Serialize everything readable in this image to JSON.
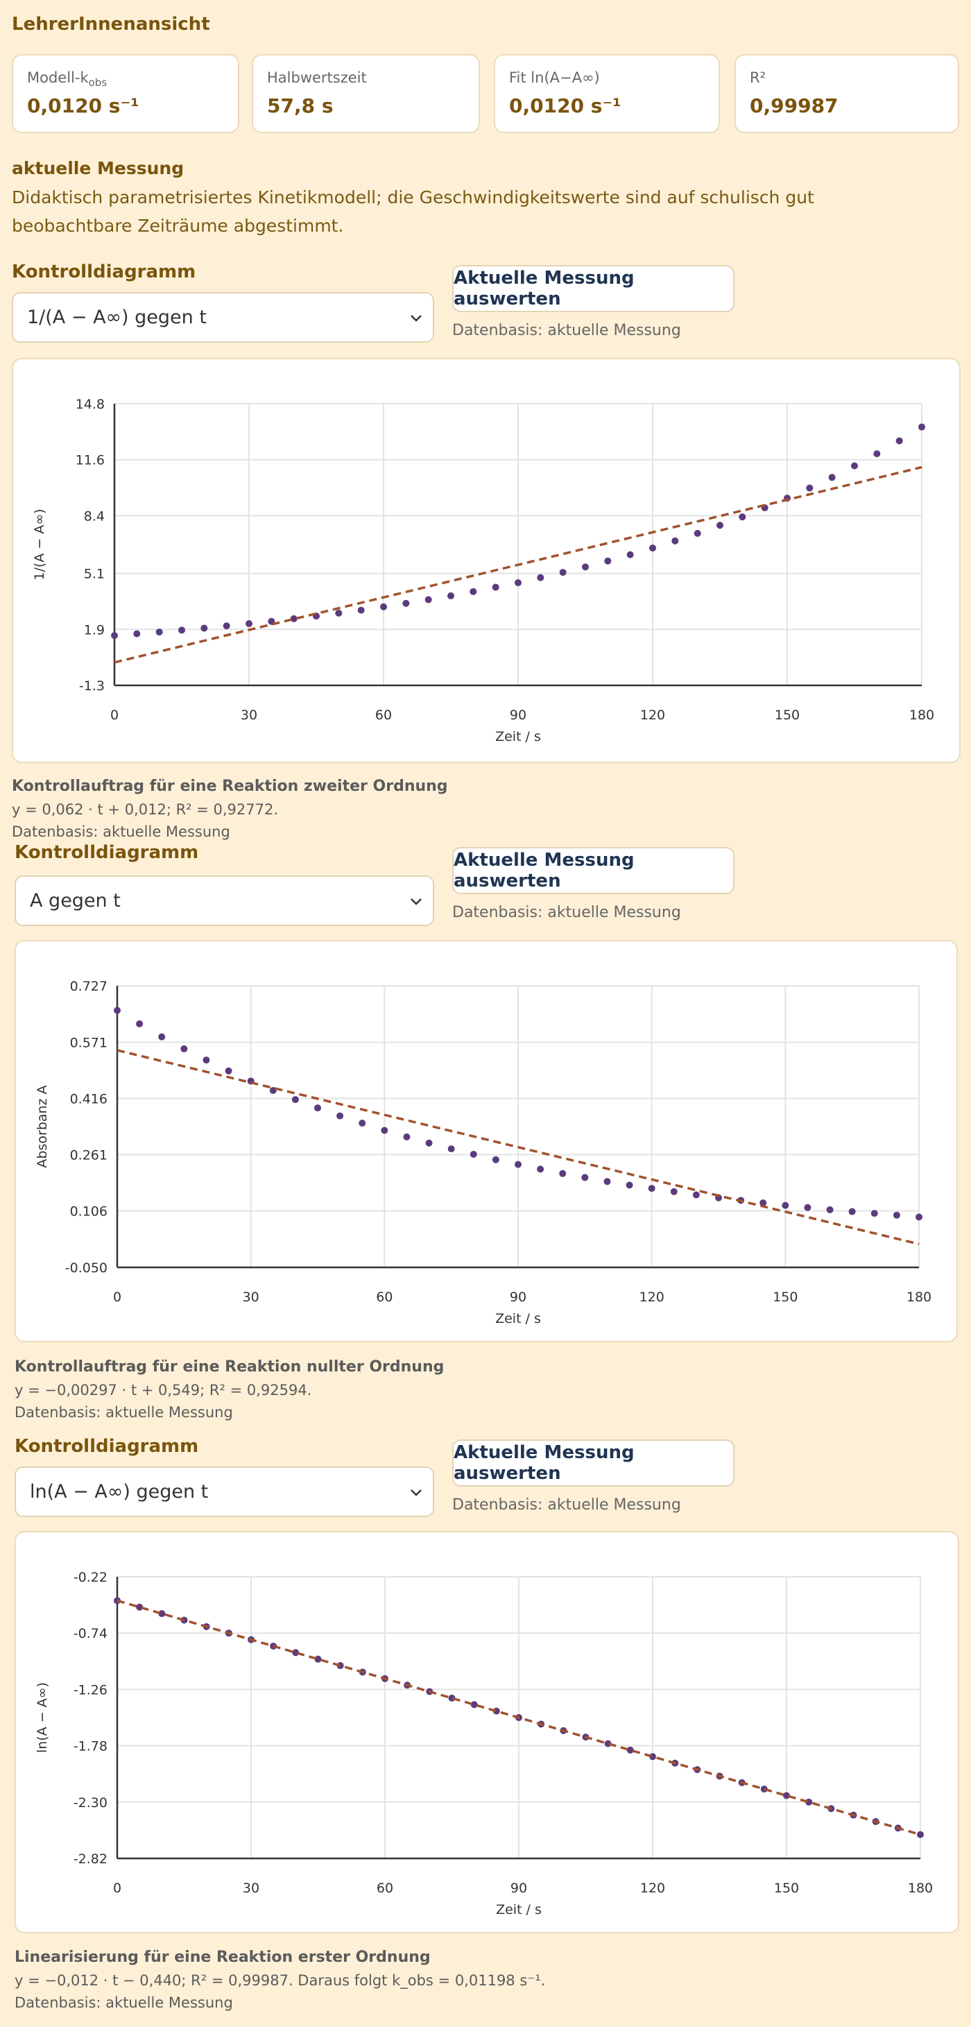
{
  "header": {
    "title": "LehrerInnenansicht"
  },
  "cards": [
    {
      "label": "Modell-k",
      "label_sub": "obs",
      "value": "0,0120 s⁻¹"
    },
    {
      "label": "Halbwertszeit",
      "value": "57,8 s"
    },
    {
      "label": "Fit ln(A−A∞)",
      "value": "0,0120 s⁻¹"
    },
    {
      "label": "R²",
      "value": "0,99987"
    }
  ],
  "measurement": {
    "title": "aktuelle Messung",
    "text": "Didaktisch parametrisiertes Kinetikmodell; die Geschwindigkeitswerte sind auf schulisch gut beobachtbare Zeiträume abgestimmt."
  },
  "panels": [
    {
      "heading": "Kontrolldiagramm",
      "select": "1/(A − A∞) gegen t",
      "button": "Aktuelle Messung auswerten",
      "basis": "Datenbasis: aktuelle Messung",
      "caption_title": "Kontrollauftrag für eine Reaktion zweiter Ordnung",
      "caption_text": "y = 0,062 · t + 0,012; R² = 0,92772.",
      "caption_basis": "Datenbasis: aktuelle Messung"
    },
    {
      "heading": "Kontrolldiagramm",
      "select": "A gegen t",
      "button": "Aktuelle Messung auswerten",
      "basis": "Datenbasis: aktuelle Messung",
      "caption_title": "Kontrollauftrag für eine Reaktion nullter Ordnung",
      "caption_text": "y = −0,00297 · t + 0,549; R² = 0,92594.",
      "caption_basis": "Datenbasis: aktuelle Messung"
    },
    {
      "heading": "Kontrolldiagramm",
      "select": "ln(A − A∞) gegen t",
      "button": "Aktuelle Messung auswerten",
      "basis": "Datenbasis: aktuelle Messung",
      "caption_title": "Linearisierung für eine Reaktion erster Ordnung",
      "caption_text": "y = −0,012 · t − 0,440; R² = 0,99987. Daraus folgt k_obs = 0,01198 s⁻¹.",
      "caption_basis": "Datenbasis: aktuelle Messung"
    }
  ],
  "chart_data": [
    {
      "type": "scatter",
      "x_label": "Zeit / s",
      "y_label": "1/(A − A∞)",
      "x": [
        0,
        5,
        10,
        15,
        20,
        25,
        30,
        35,
        40,
        45,
        50,
        55,
        60,
        65,
        70,
        75,
        80,
        85,
        90,
        95,
        100,
        105,
        110,
        115,
        120,
        125,
        130,
        135,
        140,
        145,
        150,
        155,
        160,
        165,
        170,
        175,
        180
      ],
      "series": [
        {
          "color": "#5b3b7d",
          "values": [
            1.55,
            1.65,
            1.75,
            1.86,
            1.97,
            2.1,
            2.23,
            2.36,
            2.51,
            2.66,
            2.83,
            3.0,
            3.19,
            3.39,
            3.6,
            3.82,
            4.06,
            4.31,
            4.57,
            4.86,
            5.16,
            5.47,
            5.81,
            6.17,
            6.55,
            6.96,
            7.39,
            7.85,
            8.33,
            8.85,
            9.4,
            9.98,
            10.59,
            11.25,
            11.94,
            12.68,
            13.47
          ]
        }
      ],
      "fit_line": {
        "color": "#a0522d",
        "x": [
          0,
          180
        ],
        "values": [
          0.012,
          11.172
        ]
      },
      "xlim": [
        0,
        180
      ],
      "xticks": [
        0,
        30,
        60,
        90,
        120,
        150,
        180
      ],
      "ylim": [
        -1.3,
        14.8
      ],
      "yticks": [
        -1.3,
        1.9,
        5.1,
        8.4,
        11.6,
        14.8
      ],
      "grid": true
    },
    {
      "type": "scatter",
      "x_label": "Zeit / s",
      "y_label": "Absorbanz A",
      "x": [
        0,
        5,
        10,
        15,
        20,
        25,
        30,
        35,
        40,
        45,
        50,
        55,
        60,
        65,
        70,
        75,
        80,
        85,
        90,
        95,
        100,
        105,
        110,
        115,
        120,
        125,
        130,
        135,
        140,
        145,
        150,
        155,
        160,
        165,
        170,
        175,
        180
      ],
      "series": [
        {
          "color": "#5b3b7d",
          "values": [
            0.659,
            0.622,
            0.586,
            0.553,
            0.522,
            0.492,
            0.464,
            0.438,
            0.413,
            0.39,
            0.368,
            0.348,
            0.328,
            0.31,
            0.293,
            0.277,
            0.262,
            0.247,
            0.234,
            0.221,
            0.209,
            0.198,
            0.187,
            0.177,
            0.168,
            0.159,
            0.15,
            0.142,
            0.135,
            0.128,
            0.121,
            0.115,
            0.109,
            0.104,
            0.099,
            0.094,
            0.089
          ]
        }
      ],
      "fit_line": {
        "color": "#a0522d",
        "x": [
          0,
          180
        ],
        "values": [
          0.549,
          0.0144
        ]
      },
      "xlim": [
        0,
        180
      ],
      "xticks": [
        0,
        30,
        60,
        90,
        120,
        150,
        180
      ],
      "ylim": [
        -0.05,
        0.727
      ],
      "yticks": [
        {
          "value": -0.05,
          "label": "-0.050"
        },
        0.106,
        0.261,
        0.416,
        0.571,
        0.727
      ],
      "grid": true
    },
    {
      "type": "scatter",
      "x_label": "Zeit / s",
      "y_label": "ln(A − A∞)",
      "x": [
        0,
        5,
        10,
        15,
        20,
        25,
        30,
        35,
        40,
        45,
        50,
        55,
        60,
        65,
        70,
        75,
        80,
        85,
        90,
        95,
        100,
        105,
        110,
        115,
        120,
        125,
        130,
        135,
        140,
        145,
        150,
        155,
        160,
        165,
        170,
        175,
        180
      ],
      "series": [
        {
          "color": "#5b3b7d",
          "values": [
            -0.44,
            -0.5,
            -0.56,
            -0.62,
            -0.68,
            -0.74,
            -0.8,
            -0.86,
            -0.92,
            -0.98,
            -1.04,
            -1.1,
            -1.16,
            -1.22,
            -1.28,
            -1.34,
            -1.4,
            -1.46,
            -1.52,
            -1.58,
            -1.64,
            -1.7,
            -1.76,
            -1.82,
            -1.88,
            -1.94,
            -2.0,
            -2.06,
            -2.12,
            -2.18,
            -2.24,
            -2.3,
            -2.36,
            -2.42,
            -2.48,
            -2.54,
            -2.6
          ]
        }
      ],
      "fit_line": {
        "color": "#a0522d",
        "x": [
          0,
          180
        ],
        "values": [
          -0.44,
          -2.6
        ]
      },
      "xlim": [
        0,
        180
      ],
      "xticks": [
        0,
        30,
        60,
        90,
        120,
        150,
        180
      ],
      "ylim": [
        -2.82,
        -0.22
      ],
      "yticks": [
        -2.82,
        {
          "value": -2.3,
          "label": "-2.30"
        },
        -1.78,
        -1.26,
        -0.74,
        -0.22
      ],
      "grid": true
    }
  ]
}
